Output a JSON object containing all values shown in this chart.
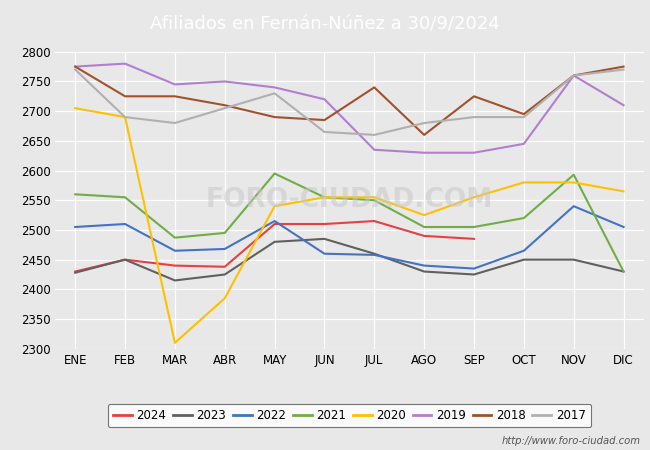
{
  "title": "Afiliados en Fernán-Núñez a 30/9/2024",
  "months": [
    "ENE",
    "FEB",
    "MAR",
    "ABR",
    "MAY",
    "JUN",
    "JUL",
    "AGO",
    "SEP",
    "OCT",
    "NOV",
    "DIC"
  ],
  "ylim": [
    2300,
    2800
  ],
  "yticks": [
    2300,
    2350,
    2400,
    2450,
    2500,
    2550,
    2600,
    2650,
    2700,
    2750,
    2800
  ],
  "series": {
    "2024": {
      "color": "#e84040",
      "data": [
        2430,
        2450,
        2440,
        2438,
        2510,
        2510,
        2515,
        2490,
        2485,
        null,
        null,
        null
      ]
    },
    "2023": {
      "color": "#606060",
      "data": [
        2428,
        2450,
        2415,
        2425,
        2480,
        2485,
        2460,
        2430,
        2425,
        2450,
        2450,
        2430
      ]
    },
    "2022": {
      "color": "#4472c4",
      "data": [
        2505,
        2510,
        2465,
        2468,
        2515,
        2460,
        2458,
        2440,
        2435,
        2465,
        2540,
        2505
      ]
    },
    "2021": {
      "color": "#70ad47",
      "data": [
        2560,
        2555,
        2487,
        2495,
        2595,
        2555,
        2550,
        2505,
        2505,
        2520,
        2593,
        2430
      ]
    },
    "2020": {
      "color": "#ffc000",
      "data": [
        2705,
        2690,
        2310,
        2385,
        2540,
        2555,
        2555,
        2525,
        2555,
        2580,
        2580,
        2565
      ]
    },
    "2019": {
      "color": "#b07fcf",
      "data": [
        2775,
        2780,
        2745,
        2750,
        2740,
        2720,
        2635,
        2630,
        2630,
        2645,
        2760,
        2710
      ]
    },
    "2018": {
      "color": "#a0522d",
      "data": [
        2775,
        2725,
        2725,
        2710,
        2690,
        2685,
        2740,
        2660,
        2725,
        2695,
        2760,
        2775
      ]
    },
    "2017": {
      "color": "#b0b0b0",
      "data": [
        2770,
        2690,
        2680,
        2705,
        2730,
        2665,
        2660,
        2680,
        2690,
        2690,
        2760,
        2770
      ]
    }
  },
  "legend_order": [
    "2024",
    "2023",
    "2022",
    "2021",
    "2020",
    "2019",
    "2018",
    "2017"
  ],
  "watermark": "FORO-CIUDAD.COM",
  "url": "http://www.foro-ciudad.com",
  "title_bg": "#5b9bd5",
  "title_fg": "#ffffff",
  "title_fontsize": 13,
  "bg_color": "#e8e8e8",
  "plot_bg_color": "#e8e8e8",
  "grid_color": "#ffffff",
  "grid_linewidth": 0.9,
  "line_linewidth": 1.5
}
